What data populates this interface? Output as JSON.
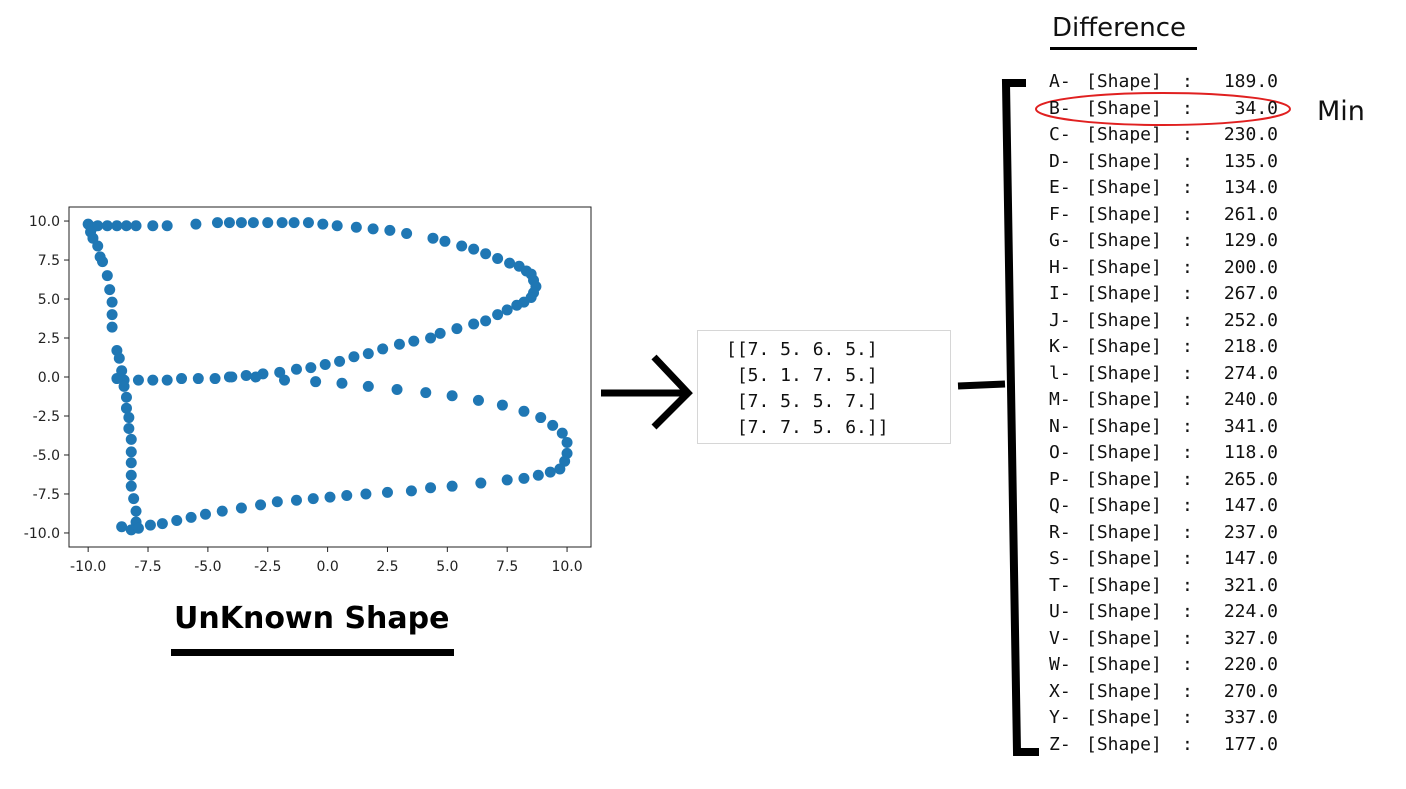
{
  "unknown_title": "UnKnown Shape",
  "difference_title": "Difference",
  "min_label": "Min",
  "matrix_lines": [
    "[[7. 5. 6. 5.]",
    " [5. 1. 7. 5.]",
    " [7. 5. 5. 7.]",
    " [7. 7. 5. 6.]]"
  ],
  "differences": [
    {
      "letter": "A-",
      "label": "[Shape]",
      "value": "189.0"
    },
    {
      "letter": "B-",
      "label": "[Shape]",
      "value": "34.0"
    },
    {
      "letter": "C-",
      "label": "[Shape]",
      "value": "230.0"
    },
    {
      "letter": "D-",
      "label": "[Shape]",
      "value": "135.0"
    },
    {
      "letter": "E-",
      "label": "[Shape]",
      "value": "134.0"
    },
    {
      "letter": "F-",
      "label": "[Shape]",
      "value": "261.0"
    },
    {
      "letter": "G-",
      "label": "[Shape]",
      "value": "129.0"
    },
    {
      "letter": "H-",
      "label": "[Shape]",
      "value": "200.0"
    },
    {
      "letter": "I-",
      "label": "[Shape]",
      "value": "267.0"
    },
    {
      "letter": "J-",
      "label": "[Shape]",
      "value": "252.0"
    },
    {
      "letter": "K-",
      "label": "[Shape]",
      "value": "218.0"
    },
    {
      "letter": "l-",
      "label": "[Shape]",
      "value": "274.0"
    },
    {
      "letter": "M-",
      "label": "[Shape]",
      "value": "240.0"
    },
    {
      "letter": "N-",
      "label": "[Shape]",
      "value": "341.0"
    },
    {
      "letter": "O-",
      "label": "[Shape]",
      "value": "118.0"
    },
    {
      "letter": "P-",
      "label": "[Shape]",
      "value": "265.0"
    },
    {
      "letter": "Q-",
      "label": "[Shape]",
      "value": "147.0"
    },
    {
      "letter": "R-",
      "label": "[Shape]",
      "value": "237.0"
    },
    {
      "letter": "S-",
      "label": "[Shape]",
      "value": "147.0"
    },
    {
      "letter": "T-",
      "label": "[Shape]",
      "value": "321.0"
    },
    {
      "letter": "U-",
      "label": "[Shape]",
      "value": "224.0"
    },
    {
      "letter": "V-",
      "label": "[Shape]",
      "value": "327.0"
    },
    {
      "letter": "W-",
      "label": "[Shape]",
      "value": "220.0"
    },
    {
      "letter": "X-",
      "label": "[Shape]",
      "value": "270.0"
    },
    {
      "letter": "Y-",
      "label": "[Shape]",
      "value": "337.0"
    },
    {
      "letter": "Z-",
      "label": "[Shape]",
      "value": "177.0"
    }
  ],
  "highlight_color": "#e02020",
  "point_color": "#1f77b4",
  "chart_data": {
    "type": "scatter",
    "title": "",
    "xlabel": "",
    "ylabel": "",
    "xlim": [
      -10.8,
      11.0
    ],
    "ylim": [
      -10.9,
      10.9
    ],
    "x_ticks": [
      -10.0,
      -7.5,
      -5.0,
      -2.5,
      0.0,
      2.5,
      5.0,
      7.5,
      10.0
    ],
    "y_ticks": [
      10.0,
      7.5,
      5.0,
      2.5,
      0.0,
      -2.5,
      -5.0,
      -7.5,
      -10.0
    ],
    "x_tick_labels": [
      "-10.0",
      "-7.5",
      "-5.0",
      "-2.5",
      "0.0",
      "2.5",
      "5.0",
      "7.5",
      "10.0"
    ],
    "y_tick_labels": [
      "10.0",
      "7.5",
      "5.0",
      "2.5",
      "0.0",
      "-2.5",
      "-5.0",
      "-7.5",
      "-10.0"
    ],
    "grid": false,
    "points": [
      [
        -10.0,
        9.8
      ],
      [
        -9.8,
        9.6
      ],
      [
        -9.6,
        9.7
      ],
      [
        -9.2,
        9.7
      ],
      [
        -8.8,
        9.7
      ],
      [
        -8.4,
        9.7
      ],
      [
        -8.0,
        9.7
      ],
      [
        -7.3,
        9.7
      ],
      [
        -6.7,
        9.7
      ],
      [
        -5.5,
        9.8
      ],
      [
        -4.6,
        9.9
      ],
      [
        -4.1,
        9.9
      ],
      [
        -3.6,
        9.9
      ],
      [
        -3.1,
        9.9
      ],
      [
        -2.5,
        9.9
      ],
      [
        -1.9,
        9.9
      ],
      [
        -1.4,
        9.9
      ],
      [
        -0.8,
        9.9
      ],
      [
        -0.2,
        9.8
      ],
      [
        0.4,
        9.7
      ],
      [
        1.2,
        9.6
      ],
      [
        1.9,
        9.5
      ],
      [
        2.6,
        9.4
      ],
      [
        3.3,
        9.2
      ],
      [
        4.4,
        8.9
      ],
      [
        4.9,
        8.7
      ],
      [
        5.6,
        8.4
      ],
      [
        6.1,
        8.2
      ],
      [
        6.6,
        7.9
      ],
      [
        7.1,
        7.6
      ],
      [
        7.6,
        7.3
      ],
      [
        8.0,
        7.1
      ],
      [
        8.3,
        6.8
      ],
      [
        8.5,
        6.6
      ],
      [
        8.6,
        6.2
      ],
      [
        8.7,
        5.8
      ],
      [
        8.6,
        5.4
      ],
      [
        8.5,
        5.1
      ],
      [
        8.2,
        4.8
      ],
      [
        7.9,
        4.6
      ],
      [
        7.5,
        4.3
      ],
      [
        7.1,
        4.0
      ],
      [
        6.6,
        3.6
      ],
      [
        6.1,
        3.4
      ],
      [
        5.4,
        3.1
      ],
      [
        4.7,
        2.8
      ],
      [
        4.3,
        2.5
      ],
      [
        3.6,
        2.3
      ],
      [
        3.0,
        2.1
      ],
      [
        2.3,
        1.8
      ],
      [
        1.7,
        1.5
      ],
      [
        1.1,
        1.3
      ],
      [
        0.5,
        1.0
      ],
      [
        -0.1,
        0.8
      ],
      [
        -0.7,
        0.6
      ],
      [
        -1.3,
        0.5
      ],
      [
        -2.0,
        0.3
      ],
      [
        -2.7,
        0.2
      ],
      [
        -3.4,
        0.1
      ],
      [
        -4.0,
        0.0
      ],
      [
        -4.7,
        -0.1
      ],
      [
        -5.4,
        -0.1
      ],
      [
        -6.1,
        -0.1
      ],
      [
        -6.7,
        -0.2
      ],
      [
        -7.3,
        -0.2
      ],
      [
        -7.9,
        -0.2
      ],
      [
        -8.5,
        -0.2
      ],
      [
        -8.8,
        -0.1
      ],
      [
        -9.9,
        9.3
      ],
      [
        -9.8,
        8.9
      ],
      [
        -9.6,
        8.4
      ],
      [
        -9.5,
        7.7
      ],
      [
        -9.4,
        7.4
      ],
      [
        -9.2,
        6.5
      ],
      [
        -9.1,
        5.6
      ],
      [
        -9.0,
        4.8
      ],
      [
        -9.0,
        4.0
      ],
      [
        -9.0,
        3.2
      ],
      [
        -8.8,
        1.7
      ],
      [
        -8.7,
        1.2
      ],
      [
        -8.6,
        0.4
      ],
      [
        -8.5,
        -0.6
      ],
      [
        -8.4,
        -1.3
      ],
      [
        -8.4,
        -2.0
      ],
      [
        -8.3,
        -2.6
      ],
      [
        -8.3,
        -3.3
      ],
      [
        -8.2,
        -4.0
      ],
      [
        -8.2,
        -4.8
      ],
      [
        -8.2,
        -5.5
      ],
      [
        -8.2,
        -6.3
      ],
      [
        -8.2,
        -7.0
      ],
      [
        -8.1,
        -7.8
      ],
      [
        -8.0,
        -8.6
      ],
      [
        -8.0,
        -9.3
      ],
      [
        -8.2,
        -9.8
      ],
      [
        -8.6,
        -9.6
      ],
      [
        -4.1,
        0.0
      ],
      [
        -3.0,
        0.0
      ],
      [
        -1.8,
        -0.2
      ],
      [
        -0.5,
        -0.3
      ],
      [
        0.6,
        -0.4
      ],
      [
        1.7,
        -0.6
      ],
      [
        2.9,
        -0.8
      ],
      [
        4.1,
        -1.0
      ],
      [
        5.2,
        -1.2
      ],
      [
        6.3,
        -1.5
      ],
      [
        7.3,
        -1.8
      ],
      [
        8.2,
        -2.2
      ],
      [
        8.9,
        -2.6
      ],
      [
        9.4,
        -3.1
      ],
      [
        9.8,
        -3.6
      ],
      [
        10.0,
        -4.2
      ],
      [
        10.0,
        -4.9
      ],
      [
        9.9,
        -5.4
      ],
      [
        9.7,
        -5.9
      ],
      [
        9.3,
        -6.1
      ],
      [
        8.8,
        -6.3
      ],
      [
        8.2,
        -6.5
      ],
      [
        7.5,
        -6.6
      ],
      [
        6.4,
        -6.8
      ],
      [
        5.2,
        -7.0
      ],
      [
        4.3,
        -7.1
      ],
      [
        3.5,
        -7.3
      ],
      [
        2.5,
        -7.4
      ],
      [
        1.6,
        -7.5
      ],
      [
        0.8,
        -7.6
      ],
      [
        0.1,
        -7.7
      ],
      [
        -0.6,
        -7.8
      ],
      [
        -1.3,
        -7.9
      ],
      [
        -2.1,
        -8.0
      ],
      [
        -2.8,
        -8.2
      ],
      [
        -3.6,
        -8.4
      ],
      [
        -4.4,
        -8.6
      ],
      [
        -5.1,
        -8.8
      ],
      [
        -5.7,
        -9.0
      ],
      [
        -6.3,
        -9.2
      ],
      [
        -6.9,
        -9.4
      ],
      [
        -7.4,
        -9.5
      ],
      [
        -7.9,
        -9.7
      ]
    ]
  }
}
